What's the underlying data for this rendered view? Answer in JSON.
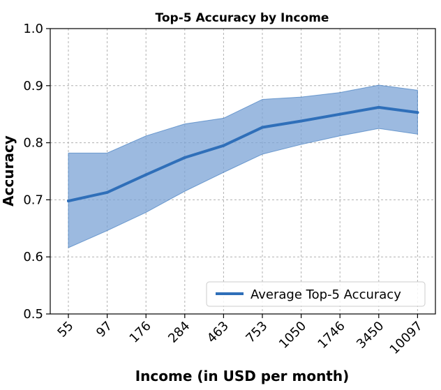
{
  "chart_data": {
    "type": "line",
    "title": "Top-5 Accuracy by Income",
    "xlabel": "Income (in USD per month)",
    "ylabel": "Accuracy",
    "categories": [
      "55",
      "97",
      "176",
      "284",
      "463",
      "753",
      "1050",
      "1746",
      "3450",
      "10097"
    ],
    "series": [
      {
        "name": "Average Top-5 Accuracy",
        "values": [
          0.698,
          0.713,
          0.744,
          0.774,
          0.795,
          0.827,
          0.838,
          0.85,
          0.862,
          0.853
        ],
        "lower": [
          0.616,
          0.646,
          0.678,
          0.715,
          0.748,
          0.78,
          0.797,
          0.812,
          0.825,
          0.815
        ],
        "upper": [
          0.782,
          0.782,
          0.812,
          0.833,
          0.843,
          0.876,
          0.88,
          0.888,
          0.901,
          0.892
        ]
      }
    ],
    "ylim": [
      0.5,
      1.0
    ],
    "yticks": [
      "0.5",
      "0.6",
      "0.7",
      "0.8",
      "0.9",
      "1.0"
    ],
    "grid": true,
    "legend_position": "lower-right",
    "line_color": "#2f6fb9",
    "band_color": "#7ba3d6"
  }
}
